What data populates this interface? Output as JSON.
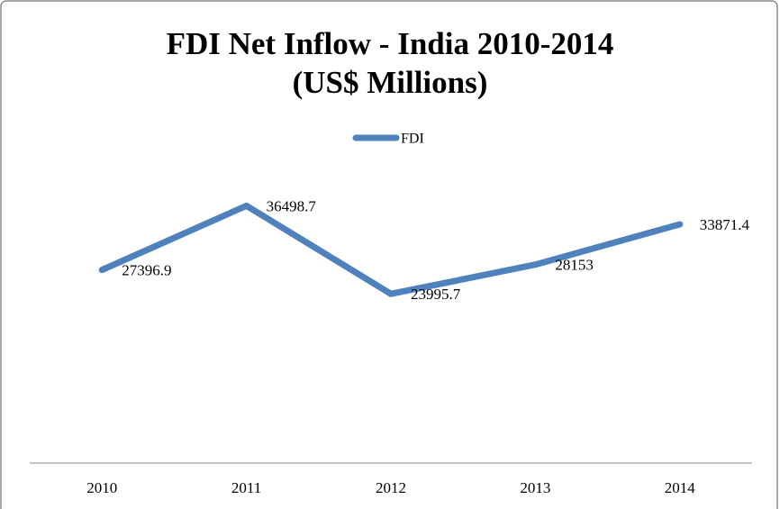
{
  "chart_data": {
    "type": "line",
    "title": [
      "FDI Net Inflow - India 2010-2014",
      "(US$ Millions)"
    ],
    "categories": [
      "2010",
      "2011",
      "2012",
      "2013",
      "2014"
    ],
    "series": [
      {
        "name": "FDI",
        "color": "#4f81bd",
        "values": [
          27396.9,
          36498.7,
          23995.7,
          28153,
          33871.4
        ]
      }
    ],
    "ylim": [
      0,
      40000
    ],
    "legend": "top"
  }
}
